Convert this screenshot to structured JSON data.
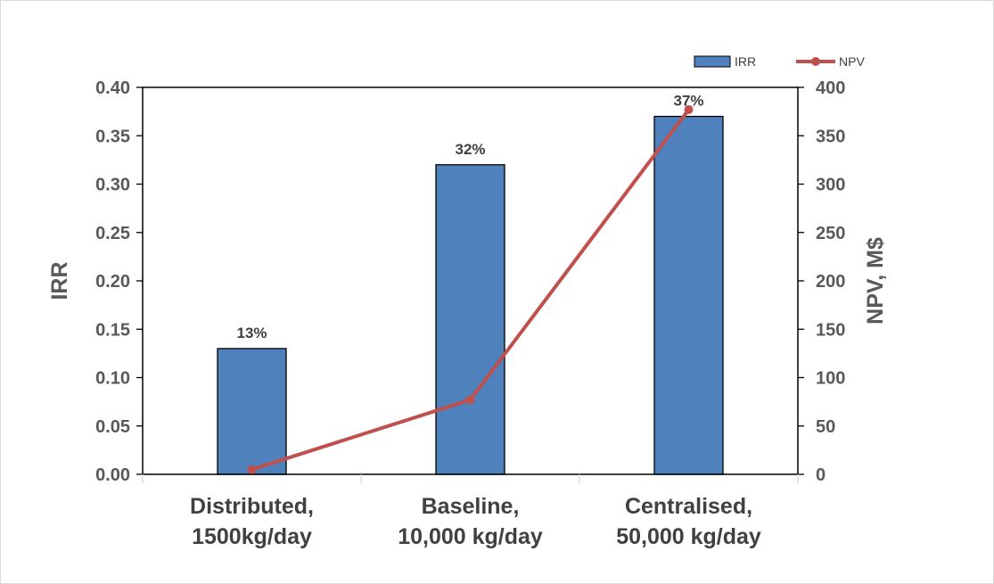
{
  "chart_data": {
    "type": "bar",
    "categories": [
      [
        "Distributed,",
        "1500kg/day"
      ],
      [
        "Baseline,",
        "10,000 kg/day"
      ],
      [
        "Centralised,",
        "50,000 kg/day"
      ]
    ],
    "series": [
      {
        "name": "IRR",
        "kind": "bar",
        "axis": "left",
        "values": [
          0.13,
          0.32,
          0.37
        ],
        "labels": [
          "13%",
          "32%",
          "37%"
        ],
        "color": "#4f81bd"
      },
      {
        "name": "NPV",
        "kind": "line",
        "axis": "right",
        "values": [
          5,
          77,
          377
        ],
        "color": "#c0504d"
      }
    ],
    "ylabel": "IRR",
    "y2label": "NPV, M$",
    "ylim": [
      0,
      0.4
    ],
    "y2lim": [
      0,
      400
    ],
    "yticks": [
      "0.00",
      "0.05",
      "0.10",
      "0.15",
      "0.20",
      "0.25",
      "0.30",
      "0.35",
      "0.40"
    ],
    "y2ticks": [
      "0",
      "50",
      "100",
      "150",
      "200",
      "250",
      "300",
      "350",
      "400"
    ],
    "grid": false,
    "legend": "top-right"
  }
}
